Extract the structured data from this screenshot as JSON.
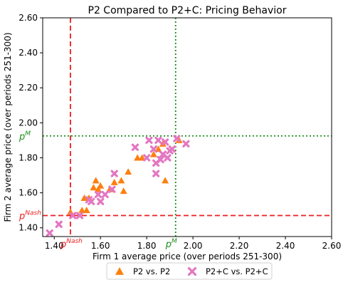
{
  "chart_data": {
    "type": "scatter",
    "title": "P2 Compared to P2+C: Pricing Behavior",
    "xlabel": "Firm 1 average price (over periods 251-300)",
    "ylabel": "Firm 2 average price (over periods 251-300)",
    "xlim": [
      1.35,
      2.6
    ],
    "ylim": [
      1.35,
      2.6
    ],
    "xticks": [
      "1.40",
      "1.60",
      "1.80",
      "2.00",
      "2.20",
      "2.40",
      "2.60"
    ],
    "yticks": [
      "1.40",
      "1.60",
      "1.80",
      "2.00",
      "2.20",
      "2.40",
      "2.60"
    ],
    "grid": false,
    "legend_position": "bottom-center, outside plot",
    "reference_lines": [
      {
        "axis": "x",
        "value": 1.47,
        "label_base": "p",
        "label_sup": "Nash",
        "color": "#ee1c1c",
        "style": "dashed"
      },
      {
        "axis": "y",
        "value": 1.47,
        "label_base": "p",
        "label_sup": "Nash",
        "color": "#ee1c1c",
        "style": "dashed"
      },
      {
        "axis": "x",
        "value": 1.925,
        "label_base": "p",
        "label_sup": "M",
        "color": "#1a8c1a",
        "style": "dotted"
      },
      {
        "axis": "y",
        "value": 1.925,
        "label_base": "p",
        "label_sup": "M",
        "color": "#1a8c1a",
        "style": "dotted"
      }
    ],
    "series": [
      {
        "name": "P2 vs. P2",
        "marker": "triangle",
        "color": "#ff7f0e",
        "points": [
          [
            1.47,
            1.49
          ],
          [
            1.52,
            1.5
          ],
          [
            1.54,
            1.5
          ],
          [
            1.53,
            1.57
          ],
          [
            1.55,
            1.57
          ],
          [
            1.57,
            1.63
          ],
          [
            1.58,
            1.67
          ],
          [
            1.59,
            1.62
          ],
          [
            1.6,
            1.64
          ],
          [
            1.64,
            1.62
          ],
          [
            1.66,
            1.66
          ],
          [
            1.69,
            1.67
          ],
          [
            1.7,
            1.61
          ],
          [
            1.72,
            1.72
          ],
          [
            1.76,
            1.8
          ],
          [
            1.78,
            1.8
          ],
          [
            1.83,
            1.82
          ],
          [
            1.85,
            1.85
          ],
          [
            1.87,
            1.88
          ],
          [
            1.88,
            1.67
          ],
          [
            1.94,
            1.9
          ]
        ]
      },
      {
        "name": "P2+C vs. P2+C",
        "marker": "x",
        "color": "#e377c2",
        "points": [
          [
            1.38,
            1.37
          ],
          [
            1.42,
            1.42
          ],
          [
            1.48,
            1.47
          ],
          [
            1.51,
            1.47
          ],
          [
            1.55,
            1.56
          ],
          [
            1.56,
            1.55
          ],
          [
            1.59,
            1.59
          ],
          [
            1.6,
            1.55
          ],
          [
            1.62,
            1.59
          ],
          [
            1.65,
            1.62
          ],
          [
            1.66,
            1.71
          ],
          [
            1.75,
            1.86
          ],
          [
            1.8,
            1.8
          ],
          [
            1.81,
            1.9
          ],
          [
            1.83,
            1.85
          ],
          [
            1.84,
            1.71
          ],
          [
            1.84,
            1.77
          ],
          [
            1.85,
            1.9
          ],
          [
            1.86,
            1.79
          ],
          [
            1.87,
            1.82
          ],
          [
            1.88,
            1.89
          ],
          [
            1.89,
            1.8
          ],
          [
            1.9,
            1.84
          ],
          [
            1.91,
            1.85
          ],
          [
            1.93,
            1.91
          ],
          [
            1.97,
            1.88
          ]
        ]
      }
    ]
  }
}
